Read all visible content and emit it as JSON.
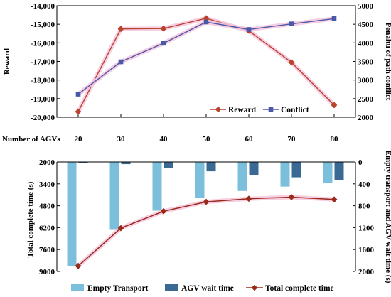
{
  "chart_data": [
    {
      "type": "line",
      "x_label": "Number of AGVs",
      "categories": [
        "20",
        "30",
        "40",
        "50",
        "60",
        "70",
        "80"
      ],
      "y_left_label": "Reward",
      "y_left_ticks": [
        "-14,000",
        "-15,000",
        "-16,000",
        "-17,000",
        "-18,000",
        "-19,000",
        "-20,000"
      ],
      "y_left_lim": [
        -20000,
        -14000
      ],
      "y_right_label": "Penaltu of path conflict",
      "y_right_ticks": [
        "5000",
        "4500",
        "4000",
        "3500",
        "3000",
        "2500",
        "2000"
      ],
      "y_right_lim": [
        2000,
        5000
      ],
      "legend_position": "bottom-right",
      "series": [
        {
          "name": "Reward",
          "axis": "left",
          "marker": "diamond",
          "color": "#b8442e",
          "values": [
            -19700,
            -15250,
            -15230,
            -14680,
            -15350,
            -17050,
            -19350
          ]
        },
        {
          "name": "Conflict",
          "axis": "right",
          "marker": "square",
          "color": "#4a58a8",
          "values": [
            2620,
            3490,
            3990,
            4560,
            4360,
            4510,
            4650
          ]
        }
      ]
    },
    {
      "type": "bar",
      "categories": [
        "20",
        "30",
        "40",
        "50",
        "60",
        "70",
        "80"
      ],
      "y_left_label": "Total complete time (s)",
      "y_left_ticks": [
        "2000",
        "3400",
        "4800",
        "6200",
        "7600",
        "9000"
      ],
      "y_left_lim": [
        2000,
        9000
      ],
      "y_left_inverted": true,
      "y_right_label": "Empty transport and AGV wait time (s)",
      "y_right_ticks": [
        "0",
        "400",
        "800",
        "1200",
        "1600",
        "2000"
      ],
      "y_right_lim": [
        0,
        2000
      ],
      "y_right_inverted": true,
      "legend_position": "bottom",
      "series": [
        {
          "name": "Empty Transport",
          "kind": "bar",
          "axis": "right",
          "color": "#7cbfdc",
          "values": [
            1900,
            1240,
            890,
            660,
            530,
            450,
            390
          ]
        },
        {
          "name": "AGV wait time",
          "kind": "bar",
          "axis": "right",
          "color": "#3a6a94",
          "values": [
            15,
            40,
            110,
            170,
            240,
            280,
            330
          ]
        },
        {
          "name": "Total complete time",
          "kind": "line",
          "axis": "left",
          "marker": "diamond",
          "color": "#9a2a1a",
          "values": [
            8650,
            6230,
            5150,
            4550,
            4350,
            4250,
            4400
          ]
        }
      ]
    }
  ]
}
